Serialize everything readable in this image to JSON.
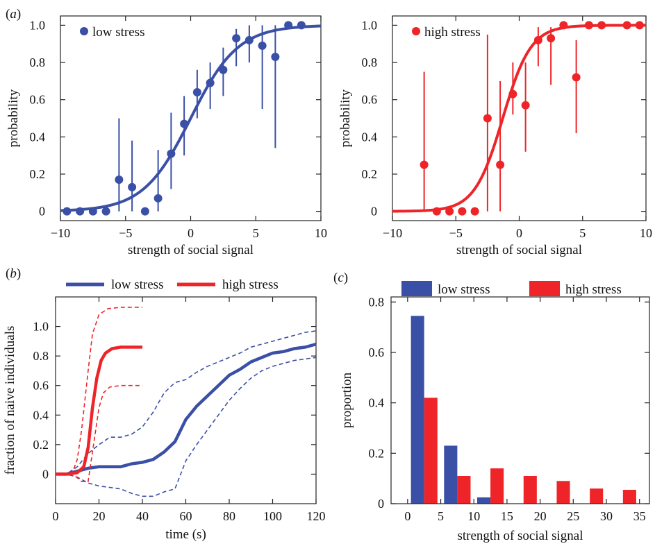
{
  "colors": {
    "low": "#3a4fa6",
    "high": "#ee2428"
  },
  "panel_labels": {
    "a_open": "(",
    "a_letter": "a",
    "a_close": ")",
    "b_open": "(",
    "b_letter": "b",
    "b_close": ")",
    "c_open": "(",
    "c_letter": "c",
    "c_close": ")"
  },
  "chart_data": [
    {
      "id": "a-low",
      "type": "scatter",
      "xlabel": "strength of social signal",
      "ylabel": "probability",
      "xlim": [
        -10,
        10
      ],
      "ylim": [
        -0.05,
        1.05
      ],
      "xticks": [
        -10,
        -5,
        0,
        5,
        10
      ],
      "xtick_labels": [
        "−10",
        "−5",
        "0",
        "5",
        "10"
      ],
      "yticks": [
        0,
        0.2,
        0.4,
        0.6,
        0.8,
        1.0
      ],
      "ytick_labels": [
        "0",
        "0.2",
        "0.4",
        "0.6",
        "0.8",
        "1.0"
      ],
      "legend": "low stress",
      "legend_position": "top-left",
      "fit": {
        "midpoint": 0.0,
        "slope": 0.55
      },
      "points": [
        {
          "x": -9.5,
          "y": 0.0,
          "lo": 0.0,
          "hi": 0.0
        },
        {
          "x": -8.5,
          "y": 0.0,
          "lo": 0.0,
          "hi": 0.0
        },
        {
          "x": -7.5,
          "y": 0.0,
          "lo": 0.0,
          "hi": 0.0
        },
        {
          "x": -6.5,
          "y": 0.0,
          "lo": 0.0,
          "hi": 0.0
        },
        {
          "x": -5.5,
          "y": 0.17,
          "lo": 0.0,
          "hi": 0.5
        },
        {
          "x": -4.5,
          "y": 0.13,
          "lo": 0.0,
          "hi": 0.38
        },
        {
          "x": -3.5,
          "y": 0.0,
          "lo": 0.0,
          "hi": 0.0
        },
        {
          "x": -2.5,
          "y": 0.07,
          "lo": 0.0,
          "hi": 0.33
        },
        {
          "x": -1.5,
          "y": 0.31,
          "lo": 0.12,
          "hi": 0.53
        },
        {
          "x": -0.5,
          "y": 0.47,
          "lo": 0.3,
          "hi": 0.62
        },
        {
          "x": 0.5,
          "y": 0.64,
          "lo": 0.5,
          "hi": 0.76
        },
        {
          "x": 1.5,
          "y": 0.69,
          "lo": 0.55,
          "hi": 0.8
        },
        {
          "x": 2.5,
          "y": 0.76,
          "lo": 0.62,
          "hi": 0.88
        },
        {
          "x": 3.5,
          "y": 0.93,
          "lo": 0.78,
          "hi": 0.98
        },
        {
          "x": 4.5,
          "y": 0.92,
          "lo": 0.8,
          "hi": 1.0
        },
        {
          "x": 5.5,
          "y": 0.89,
          "lo": 0.55,
          "hi": 1.0
        },
        {
          "x": 6.5,
          "y": 0.83,
          "lo": 0.34,
          "hi": 1.0
        },
        {
          "x": 7.5,
          "y": 1.0,
          "lo": 1.0,
          "hi": 1.0
        },
        {
          "x": 8.5,
          "y": 1.0,
          "lo": 1.0,
          "hi": 1.0
        }
      ]
    },
    {
      "id": "a-high",
      "type": "scatter",
      "xlabel": "strength of social signal",
      "ylabel": "probability",
      "xlim": [
        -10,
        10
      ],
      "ylim": [
        -0.05,
        1.05
      ],
      "xticks": [
        -10,
        -5,
        0,
        5,
        10
      ],
      "xtick_labels": [
        "−10",
        "−5",
        "0",
        "5",
        "10"
      ],
      "yticks": [
        0,
        0.2,
        0.4,
        0.6,
        0.8,
        1.0
      ],
      "ytick_labels": [
        "0",
        "0.2",
        "0.4",
        "0.6",
        "0.8",
        "1.0"
      ],
      "legend": "high stress",
      "legend_position": "top-left",
      "fit": {
        "midpoint": -1.3,
        "slope": 0.9
      },
      "points": [
        {
          "x": -7.5,
          "y": 0.25,
          "lo": 0.0,
          "hi": 0.75
        },
        {
          "x": -6.5,
          "y": 0.0,
          "lo": 0.0,
          "hi": 0.0
        },
        {
          "x": -5.5,
          "y": 0.0,
          "lo": 0.0,
          "hi": 0.0
        },
        {
          "x": -4.5,
          "y": 0.0,
          "lo": 0.0,
          "hi": 0.0
        },
        {
          "x": -3.5,
          "y": 0.0,
          "lo": 0.0,
          "hi": 0.0
        },
        {
          "x": -2.5,
          "y": 0.5,
          "lo": 0.0,
          "hi": 0.95
        },
        {
          "x": -1.5,
          "y": 0.25,
          "lo": 0.0,
          "hi": 0.7
        },
        {
          "x": -0.5,
          "y": 0.63,
          "lo": 0.52,
          "hi": 0.8
        },
        {
          "x": 0.5,
          "y": 0.57,
          "lo": 0.32,
          "hi": 0.8
        },
        {
          "x": 1.5,
          "y": 0.92,
          "lo": 0.78,
          "hi": 0.99
        },
        {
          "x": 2.5,
          "y": 0.93,
          "lo": 0.68,
          "hi": 0.99
        },
        {
          "x": 3.5,
          "y": 1.0,
          "lo": 1.0,
          "hi": 1.0
        },
        {
          "x": 4.5,
          "y": 0.72,
          "lo": 0.42,
          "hi": 0.92
        },
        {
          "x": 5.5,
          "y": 1.0,
          "lo": 1.0,
          "hi": 1.0
        },
        {
          "x": 6.5,
          "y": 1.0,
          "lo": 1.0,
          "hi": 1.0
        },
        {
          "x": 8.5,
          "y": 1.0,
          "lo": 1.0,
          "hi": 1.0
        },
        {
          "x": 9.5,
          "y": 1.0,
          "lo": 1.0,
          "hi": 1.0
        }
      ]
    },
    {
      "id": "b",
      "type": "line",
      "xlabel": "time (s)",
      "ylabel": "fraction of naive individuals",
      "xlim": [
        0,
        120
      ],
      "ylim": [
        -0.2,
        1.2
      ],
      "xticks": [
        0,
        20,
        40,
        60,
        80,
        100,
        120
      ],
      "xtick_labels": [
        "0",
        "20",
        "40",
        "60",
        "80",
        "100",
        "120"
      ],
      "yticks": [
        0,
        0.2,
        0.4,
        0.6,
        0.8,
        1.0
      ],
      "ytick_labels": [
        "0",
        "0.2",
        "0.4",
        "0.6",
        "0.8",
        "1.0"
      ],
      "legend_position": "top",
      "series": [
        {
          "name": "low stress",
          "color_key": "low",
          "mean": [
            [
              0,
              0
            ],
            [
              5,
              0
            ],
            [
              10,
              0.02
            ],
            [
              15,
              0.04
            ],
            [
              20,
              0.05
            ],
            [
              25,
              0.05
            ],
            [
              30,
              0.05
            ],
            [
              35,
              0.07
            ],
            [
              40,
              0.08
            ],
            [
              45,
              0.1
            ],
            [
              50,
              0.15
            ],
            [
              55,
              0.22
            ],
            [
              60,
              0.37
            ],
            [
              65,
              0.46
            ],
            [
              70,
              0.53
            ],
            [
              75,
              0.6
            ],
            [
              80,
              0.67
            ],
            [
              85,
              0.71
            ],
            [
              90,
              0.76
            ],
            [
              95,
              0.79
            ],
            [
              100,
              0.82
            ],
            [
              105,
              0.83
            ],
            [
              110,
              0.85
            ],
            [
              115,
              0.86
            ],
            [
              120,
              0.88
            ]
          ],
          "upper": [
            [
              0,
              0
            ],
            [
              5,
              0
            ],
            [
              10,
              0.05
            ],
            [
              15,
              0.14
            ],
            [
              20,
              0.2
            ],
            [
              25,
              0.25
            ],
            [
              30,
              0.25
            ],
            [
              35,
              0.27
            ],
            [
              40,
              0.32
            ],
            [
              45,
              0.42
            ],
            [
              50,
              0.55
            ],
            [
              55,
              0.62
            ],
            [
              60,
              0.64
            ],
            [
              65,
              0.69
            ],
            [
              70,
              0.73
            ],
            [
              75,
              0.76
            ],
            [
              80,
              0.79
            ],
            [
              85,
              0.82
            ],
            [
              90,
              0.86
            ],
            [
              95,
              0.88
            ],
            [
              100,
              0.9
            ],
            [
              105,
              0.92
            ],
            [
              110,
              0.94
            ],
            [
              115,
              0.96
            ],
            [
              120,
              0.97
            ]
          ],
          "lower": [
            [
              0,
              0
            ],
            [
              5,
              0
            ],
            [
              10,
              -0.02
            ],
            [
              15,
              -0.06
            ],
            [
              20,
              -0.08
            ],
            [
              25,
              -0.09
            ],
            [
              30,
              -0.1
            ],
            [
              35,
              -0.13
            ],
            [
              40,
              -0.15
            ],
            [
              45,
              -0.15
            ],
            [
              50,
              -0.12
            ],
            [
              55,
              -0.1
            ],
            [
              60,
              0.09
            ],
            [
              65,
              0.2
            ],
            [
              70,
              0.3
            ],
            [
              75,
              0.4
            ],
            [
              80,
              0.5
            ],
            [
              85,
              0.58
            ],
            [
              90,
              0.65
            ],
            [
              95,
              0.7
            ],
            [
              100,
              0.73
            ],
            [
              105,
              0.75
            ],
            [
              110,
              0.77
            ],
            [
              115,
              0.78
            ],
            [
              120,
              0.79
            ]
          ]
        },
        {
          "name": "high stress",
          "color_key": "high",
          "mean": [
            [
              0,
              0
            ],
            [
              6,
              0
            ],
            [
              10,
              0.01
            ],
            [
              13,
              0.05
            ],
            [
              15,
              0.18
            ],
            [
              17,
              0.45
            ],
            [
              19,
              0.65
            ],
            [
              21,
              0.77
            ],
            [
              23,
              0.82
            ],
            [
              26,
              0.85
            ],
            [
              30,
              0.86
            ],
            [
              35,
              0.86
            ],
            [
              40,
              0.86
            ]
          ],
          "upper": [
            [
              0,
              0
            ],
            [
              6,
              0
            ],
            [
              8,
              0.02
            ],
            [
              10,
              0.1
            ],
            [
              12,
              0.3
            ],
            [
              15,
              0.7
            ],
            [
              17,
              0.95
            ],
            [
              20,
              1.08
            ],
            [
              24,
              1.12
            ],
            [
              30,
              1.13
            ],
            [
              35,
              1.13
            ],
            [
              40,
              1.13
            ]
          ],
          "lower": [
            [
              0,
              0
            ],
            [
              8,
              0
            ],
            [
              12,
              -0.05
            ],
            [
              15,
              -0.05
            ],
            [
              16,
              0.05
            ],
            [
              18,
              0.25
            ],
            [
              20,
              0.45
            ],
            [
              22,
              0.55
            ],
            [
              25,
              0.59
            ],
            [
              30,
              0.6
            ],
            [
              35,
              0.6
            ],
            [
              40,
              0.6
            ]
          ]
        }
      ]
    },
    {
      "id": "c",
      "type": "bar",
      "xlabel": "strength of social signal",
      "ylabel": "proportion",
      "xlim": [
        -2.5,
        36.5
      ],
      "ylim": [
        0,
        0.82
      ],
      "xticks": [
        0,
        5,
        10,
        15,
        20,
        25,
        30,
        35
      ],
      "xtick_labels": [
        "0",
        "5",
        "10",
        "15",
        "20",
        "25",
        "30",
        "35"
      ],
      "yticks": [
        0,
        0.2,
        0.4,
        0.6,
        0.8
      ],
      "ytick_labels": [
        "0",
        "0.2",
        "0.4",
        "0.6",
        "0.8"
      ],
      "legend_position": "top",
      "bin_centers": [
        2.5,
        7.5,
        12.5,
        17.5,
        22.5,
        27.5,
        32.5
      ],
      "series": [
        {
          "name": "low stress",
          "color_key": "low",
          "values": [
            0.745,
            0.23,
            0.025,
            0,
            0,
            0,
            0
          ]
        },
        {
          "name": "high stress",
          "color_key": "high",
          "values": [
            0.42,
            0.11,
            0.14,
            0.11,
            0.09,
            0.06,
            0.055
          ]
        }
      ]
    }
  ]
}
